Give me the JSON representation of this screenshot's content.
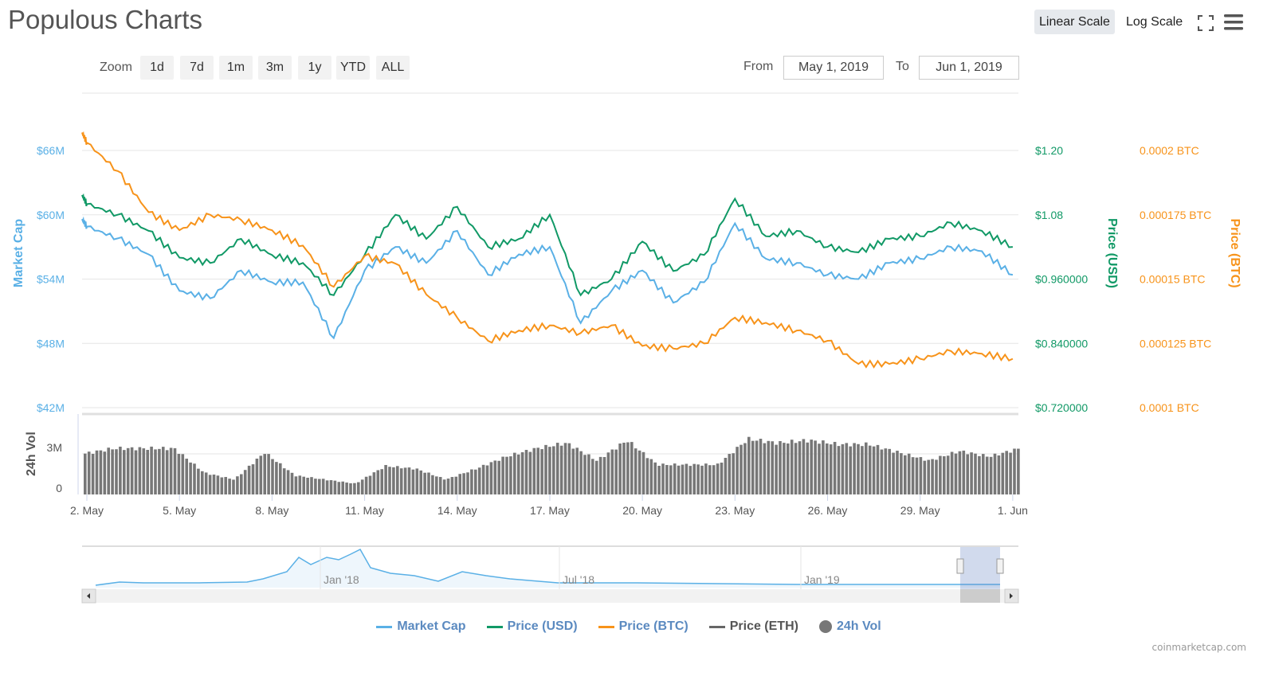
{
  "title": "Populous Charts",
  "toolbar": {
    "zoom_label": "Zoom",
    "zoom_buttons": [
      "1d",
      "7d",
      "1m",
      "3m",
      "1y",
      "YTD",
      "ALL"
    ],
    "from_label": "From",
    "from_value": "May 1, 2019",
    "to_label": "To",
    "to_value": "Jun 1, 2019",
    "linear_scale": "Linear Scale",
    "log_scale": "Log Scale",
    "active_scale": "Linear Scale"
  },
  "legend": [
    {
      "label": "Market Cap",
      "color": "#5ab0e6"
    },
    {
      "label": "Price (USD)",
      "color": "#119966"
    },
    {
      "label": "Price (BTC)",
      "color": "#f7931a"
    },
    {
      "label": "Price (ETH)",
      "color": "#666666"
    },
    {
      "label": "24h Vol",
      "color": "#777777"
    }
  ],
  "credits": "coinmarketcap.com",
  "chart_data": {
    "type": "line",
    "x": [
      "May 1 20:00",
      "May 2",
      "May 3",
      "May 4",
      "May 5",
      "May 6",
      "May 7",
      "May 8",
      "May 9",
      "May 10",
      "May 11",
      "May 12",
      "May 13",
      "May 14",
      "May 15",
      "May 16",
      "May 17",
      "May 18",
      "May 19",
      "May 20",
      "May 21",
      "May 22",
      "May 23",
      "May 24",
      "May 25",
      "May 26",
      "May 27",
      "May 28",
      "May 29",
      "May 30",
      "May 31",
      "Jun 1"
    ],
    "x_ticks": [
      "2. May",
      "5. May",
      "8. May",
      "11. May",
      "14. May",
      "17. May",
      "20. May",
      "23. May",
      "26. May",
      "29. May",
      "1. Jun"
    ],
    "axes": {
      "market_cap": {
        "title": "Market Cap",
        "ticks": [
          "$42M",
          "$48M",
          "$54M",
          "$60M",
          "$66M"
        ],
        "range": [
          42,
          66
        ],
        "unit": "M USD",
        "color": "#5ab0e6"
      },
      "price_usd": {
        "title": "Price (USD)",
        "ticks": [
          "$0.720000",
          "$0.840000",
          "$0.960000",
          "$1.08",
          "$1.20"
        ],
        "range": [
          0.72,
          1.2
        ],
        "color": "#119966"
      },
      "price_btc": {
        "title": "Price (BTC)",
        "ticks": [
          "0.0001 BTC",
          "0.000125 BTC",
          "0.00015 BTC",
          "0.000175 BTC",
          "0.0002 BTC"
        ],
        "range": [
          0.0001,
          0.0002
        ],
        "color": "#f7931a"
      },
      "volume": {
        "title": "24h Vol",
        "ticks": [
          "0",
          "3M"
        ],
        "range": [
          0,
          4.5
        ],
        "unit": "M USD"
      }
    },
    "series": [
      {
        "name": "Market Cap",
        "axis": "market_cap",
        "color": "#5ab0e6",
        "values": [
          59.6,
          58.9,
          57.8,
          56.3,
          52.9,
          52.2,
          54.8,
          53.7,
          53.7,
          48.5,
          54.8,
          57.0,
          55.5,
          58.5,
          54.4,
          56.3,
          57.0,
          49.9,
          52.9,
          54.8,
          51.8,
          53.7,
          59.2,
          55.9,
          55.5,
          54.4,
          54.0,
          55.5,
          55.9,
          57.0,
          56.6,
          54.4
        ]
      },
      {
        "name": "Price (USD)",
        "axis": "price_usd",
        "color": "#119966",
        "values": [
          1.117,
          1.1,
          1.08,
          1.05,
          1.0,
          0.99,
          1.035,
          1.005,
          0.99,
          0.93,
          1.005,
          1.08,
          1.035,
          1.095,
          1.02,
          1.035,
          1.08,
          0.93,
          0.96,
          1.03,
          0.975,
          1.005,
          1.11,
          1.04,
          1.05,
          1.02,
          1.01,
          1.035,
          1.04,
          1.065,
          1.05,
          1.02
        ]
      },
      {
        "name": "Price (BTC)",
        "axis": "price_btc",
        "color": "#f7931a",
        "values": [
          0.000207,
          0.000203,
          0.000192,
          0.000176,
          0.000169,
          0.000175,
          0.000173,
          0.000169,
          0.000163,
          0.000147,
          0.000159,
          0.000156,
          0.000144,
          0.000135,
          0.000126,
          0.00013,
          0.000132,
          0.000129,
          0.000132,
          0.000124,
          0.000123,
          0.000125,
          0.000135,
          0.000133,
          0.00013,
          0.000126,
          0.000117,
          0.000117,
          0.000119,
          0.000122,
          0.000121,
          0.000119
        ]
      },
      {
        "name": "24h Vol",
        "axis": "volume",
        "type": "column",
        "color": "#777777",
        "values": [
          3.0,
          3.4,
          3.4,
          3.4,
          1.6,
          1.1,
          3.1,
          1.4,
          1.1,
          0.8,
          2.1,
          1.9,
          1.1,
          1.9,
          2.8,
          3.4,
          3.8,
          2.5,
          4.0,
          2.2,
          2.2,
          2.2,
          4.1,
          3.8,
          4.0,
          3.7,
          3.7,
          3.1,
          2.5,
          3.2,
          2.8,
          3.4
        ]
      }
    ],
    "navigator": {
      "ticks": [
        "Jan '18",
        "Jul '18",
        "Jan '19"
      ]
    },
    "grid": true,
    "legend_position": "bottom"
  }
}
